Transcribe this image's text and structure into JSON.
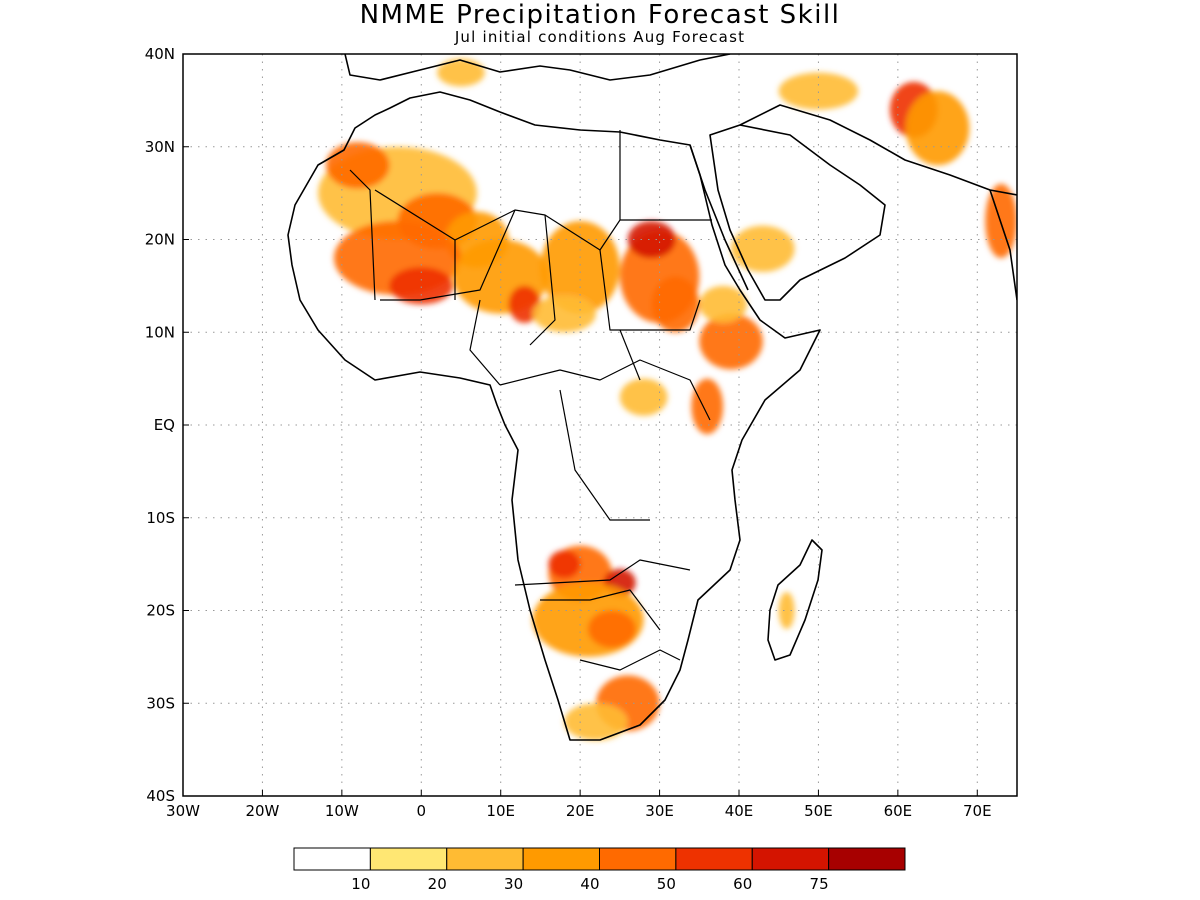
{
  "title": "NMME Precipitation Forecast Skill",
  "subtitle": "Jul initial conditions  Aug Forecast",
  "map": {
    "lon_range": [
      -30,
      75
    ],
    "lat_range": [
      -40,
      40
    ],
    "lon_ticks": [
      {
        "value": -30,
        "label": "30W"
      },
      {
        "value": -20,
        "label": "20W"
      },
      {
        "value": -10,
        "label": "10W"
      },
      {
        "value": 0,
        "label": "0"
      },
      {
        "value": 10,
        "label": "10E"
      },
      {
        "value": 20,
        "label": "20E"
      },
      {
        "value": 30,
        "label": "30E"
      },
      {
        "value": 40,
        "label": "40E"
      },
      {
        "value": 50,
        "label": "50E"
      },
      {
        "value": 60,
        "label": "60E"
      },
      {
        "value": 70,
        "label": "70E"
      }
    ],
    "lat_ticks": [
      {
        "value": 40,
        "label": "40N"
      },
      {
        "value": 30,
        "label": "30N"
      },
      {
        "value": 20,
        "label": "20N"
      },
      {
        "value": 10,
        "label": "10N"
      },
      {
        "value": 0,
        "label": "EQ"
      },
      {
        "value": -10,
        "label": "10S"
      },
      {
        "value": -20,
        "label": "20S"
      },
      {
        "value": -30,
        "label": "30S"
      },
      {
        "value": -40,
        "label": "40S"
      }
    ],
    "grid": "dotted",
    "skill_regions": [
      {
        "lon": -3,
        "lat": 25,
        "rx": 10,
        "ry": 5,
        "value": 25
      },
      {
        "lon": -8,
        "lat": 28,
        "rx": 4,
        "ry": 2.5,
        "value": 45
      },
      {
        "lon": 2,
        "lat": 22,
        "rx": 5,
        "ry": 3,
        "value": 45
      },
      {
        "lon": 7,
        "lat": 20,
        "rx": 4,
        "ry": 3,
        "value": 35
      },
      {
        "lon": -3,
        "lat": 18,
        "rx": 8,
        "ry": 4,
        "value": 40
      },
      {
        "lon": 0,
        "lat": 15,
        "rx": 4,
        "ry": 2,
        "value": 50
      },
      {
        "lon": 10,
        "lat": 16,
        "rx": 6,
        "ry": 4,
        "value": 35
      },
      {
        "lon": 13,
        "lat": 13,
        "rx": 2,
        "ry": 2,
        "value": 55
      },
      {
        "lon": 20,
        "lat": 17,
        "rx": 5,
        "ry": 5,
        "value": 30
      },
      {
        "lon": 18,
        "lat": 12,
        "rx": 4,
        "ry": 2,
        "value": 25
      },
      {
        "lon": 30,
        "lat": 16,
        "rx": 5,
        "ry": 5,
        "value": 40
      },
      {
        "lon": 29,
        "lat": 20,
        "rx": 3,
        "ry": 2,
        "value": 60
      },
      {
        "lon": 32,
        "lat": 13,
        "rx": 3,
        "ry": 3,
        "value": 45
      },
      {
        "lon": 39,
        "lat": 9,
        "rx": 4,
        "ry": 3,
        "value": 40
      },
      {
        "lon": 38,
        "lat": 13,
        "rx": 3,
        "ry": 2,
        "value": 25
      },
      {
        "lon": 43,
        "lat": 19,
        "rx": 4,
        "ry": 2.5,
        "value": 25
      },
      {
        "lon": 36,
        "lat": 2,
        "rx": 2,
        "ry": 3,
        "value": 45
      },
      {
        "lon": 28,
        "lat": 3,
        "rx": 3,
        "ry": 2,
        "value": 25
      },
      {
        "lon": 20,
        "lat": -16,
        "rx": 4,
        "ry": 3,
        "value": 45
      },
      {
        "lon": 18,
        "lat": -15,
        "rx": 2,
        "ry": 1.5,
        "value": 55
      },
      {
        "lon": 25,
        "lat": -17,
        "rx": 2,
        "ry": 1.5,
        "value": 65
      },
      {
        "lon": 21,
        "lat": -21,
        "rx": 7,
        "ry": 4,
        "value": 30
      },
      {
        "lon": 24,
        "lat": -22,
        "rx": 3,
        "ry": 2,
        "value": 45
      },
      {
        "lon": 26,
        "lat": -30,
        "rx": 4,
        "ry": 3,
        "value": 40
      },
      {
        "lon": 22,
        "lat": -32,
        "rx": 4,
        "ry": 2,
        "value": 25
      },
      {
        "lon": 62,
        "lat": 34,
        "rx": 3,
        "ry": 3,
        "value": 55
      },
      {
        "lon": 65,
        "lat": 32,
        "rx": 4,
        "ry": 4,
        "value": 30
      },
      {
        "lon": 73,
        "lat": 22,
        "rx": 2,
        "ry": 4,
        "value": 40
      },
      {
        "lon": 46,
        "lat": -20,
        "rx": 1,
        "ry": 2,
        "value": 20
      },
      {
        "lon": 5,
        "lat": 38,
        "rx": 3,
        "ry": 1.5,
        "value": 25
      },
      {
        "lon": 50,
        "lat": 36,
        "rx": 5,
        "ry": 2,
        "value": 25
      }
    ]
  },
  "colorbar": {
    "colors": [
      "#ffffff",
      "#ffe773",
      "#ffbb33",
      "#ff9a00",
      "#ff6a00",
      "#ee3200",
      "#d41400",
      "#a70000"
    ],
    "labels": [
      "10",
      "20",
      "30",
      "40",
      "50",
      "60",
      "75"
    ],
    "thresholds": [
      10,
      20,
      30,
      40,
      50,
      60,
      75
    ]
  }
}
